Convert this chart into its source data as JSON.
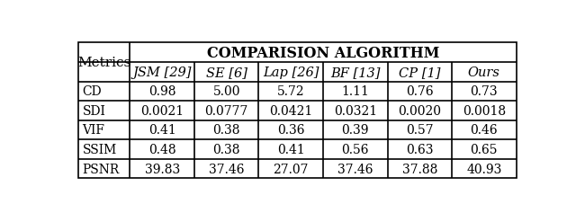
{
  "title": "COMPARISION ALGORITHM",
  "metrics_col": "Metrics",
  "col_headers": [
    "JSM [29]",
    "SE [6]",
    "Lap [26]",
    "BF [13]",
    "CP [1]",
    "Ours"
  ],
  "row_headers": [
    "CD",
    "SDI",
    "VIF",
    "SSIM",
    "PSNR"
  ],
  "table_data": [
    [
      "0.98",
      "5.00",
      "5.72",
      "1.11",
      "0.76",
      "0.73"
    ],
    [
      "0.0021",
      "0.0777",
      "0.0421",
      "0.0321",
      "0.0020",
      "0.0018"
    ],
    [
      "0.41",
      "0.38",
      "0.36",
      "0.39",
      "0.57",
      "0.46"
    ],
    [
      "0.48",
      "0.38",
      "0.41",
      "0.56",
      "0.63",
      "0.65"
    ],
    [
      "39.83",
      "37.46",
      "27.07",
      "37.46",
      "37.88",
      "40.93"
    ]
  ],
  "bg_color": "#ffffff",
  "text_color": "#000000",
  "line_color": "#000000",
  "figsize": [
    6.4,
    2.28
  ],
  "dpi": 100,
  "font_size_title": 11.5,
  "font_size_header": 10.5,
  "font_size_data": 10,
  "font_size_metrics": 11
}
